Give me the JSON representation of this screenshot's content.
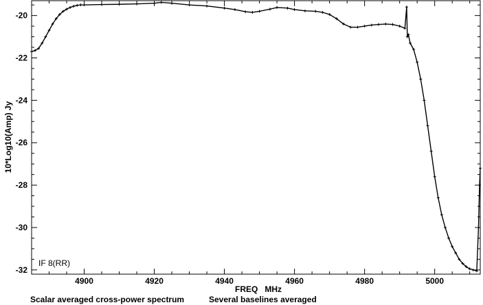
{
  "chart_data": {
    "type": "line",
    "xlabel": "FREQ   MHz",
    "ylabel": "10*Log10(Amp) Jy",
    "xlim": [
      4885,
      5013
    ],
    "ylim": [
      -32.2,
      -19.3
    ],
    "x_ticks": [
      4900,
      4920,
      4940,
      4960,
      4980,
      5000
    ],
    "y_ticks": [
      -20,
      -22,
      -24,
      -26,
      -28,
      -30,
      -32
    ],
    "annotation": "IF 8(RR)",
    "footer_left": "Scalar averaged cross-power spectrum",
    "footer_right": "Several baselines averaged",
    "grid": false,
    "series": [
      {
        "x": [
          4885,
          4886,
          4887,
          4888,
          4889,
          4890,
          4891,
          4892,
          4893,
          4894,
          4895,
          4896,
          4897,
          4898,
          4899,
          4900,
          4905,
          4910,
          4915,
          4920,
          4922,
          4925,
          4930,
          4935,
          4940,
          4943,
          4946,
          4948,
          4950,
          4953,
          4955,
          4958,
          4960,
          4963,
          4966,
          4968,
          4970,
          4972,
          4974,
          4976,
          4978,
          4980,
          4982,
          4984,
          4986,
          4988,
          4990,
          4991.5,
          4992,
          4992.2,
          4992.5,
          4993,
          4994,
          4995,
          4996,
          4997,
          4998,
          4999,
          5000,
          5001,
          5002,
          5003,
          5004,
          5005,
          5006,
          5007,
          5008,
          5009,
          5010,
          5011,
          5012,
          5012.5,
          5012.8,
          5013
        ],
        "y": [
          -21.7,
          -21.65,
          -21.55,
          -21.3,
          -21.0,
          -20.7,
          -20.4,
          -20.15,
          -19.95,
          -19.8,
          -19.7,
          -19.62,
          -19.56,
          -19.52,
          -19.5,
          -19.5,
          -19.48,
          -19.47,
          -19.45,
          -19.42,
          -19.38,
          -19.42,
          -19.5,
          -19.55,
          -19.65,
          -19.72,
          -19.82,
          -19.85,
          -19.8,
          -19.7,
          -19.62,
          -19.65,
          -19.72,
          -19.78,
          -19.8,
          -19.85,
          -19.95,
          -20.15,
          -20.4,
          -20.55,
          -20.55,
          -20.5,
          -20.45,
          -20.42,
          -20.4,
          -20.42,
          -20.5,
          -20.6,
          -19.6,
          -21.0,
          -20.9,
          -21.3,
          -21.6,
          -22.2,
          -23.0,
          -24.0,
          -25.2,
          -26.4,
          -27.6,
          -28.6,
          -29.4,
          -30.0,
          -30.5,
          -30.9,
          -31.2,
          -31.5,
          -31.7,
          -31.85,
          -31.95,
          -32.0,
          -32.05,
          -30.0,
          -28.0,
          -27.2
        ]
      }
    ]
  }
}
